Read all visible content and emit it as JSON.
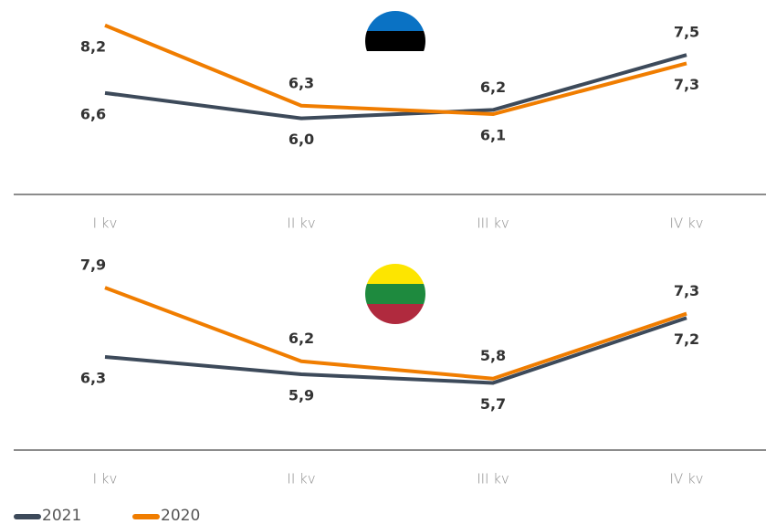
{
  "chart_data": [
    {
      "type": "line",
      "categories": [
        "I kv",
        "II kv",
        "III kv",
        "IV kv"
      ],
      "ylim": [
        4.2,
        8.8
      ],
      "series": [
        {
          "name": "2021",
          "color": "#3d4a5a",
          "values": [
            6.6,
            6.0,
            6.2,
            7.5
          ],
          "value_labels": [
            "6,6",
            "6,0",
            "6,2",
            "7,5"
          ]
        },
        {
          "name": "2020",
          "color": "#f07d00",
          "values": [
            8.2,
            6.3,
            6.1,
            7.3
          ],
          "value_labels": [
            "8,2",
            "6,3",
            "6,1",
            "7,3"
          ]
        }
      ]
    },
    {
      "type": "line",
      "categories": [
        "I kv",
        "II kv",
        "III kv",
        "IV kv"
      ],
      "ylim": [
        4.15,
        8.85
      ],
      "series": [
        {
          "name": "2021",
          "color": "#3d4a5a",
          "values": [
            6.3,
            5.9,
            5.7,
            7.2
          ],
          "value_labels": [
            "6,3",
            "5,9",
            "5,7",
            "7,2"
          ]
        },
        {
          "name": "2020",
          "color": "#f07d00",
          "values": [
            7.9,
            6.2,
            5.8,
            7.3
          ],
          "value_labels": [
            "7,9",
            "6,2",
            "5,8",
            "7,3"
          ]
        }
      ]
    }
  ]
}
